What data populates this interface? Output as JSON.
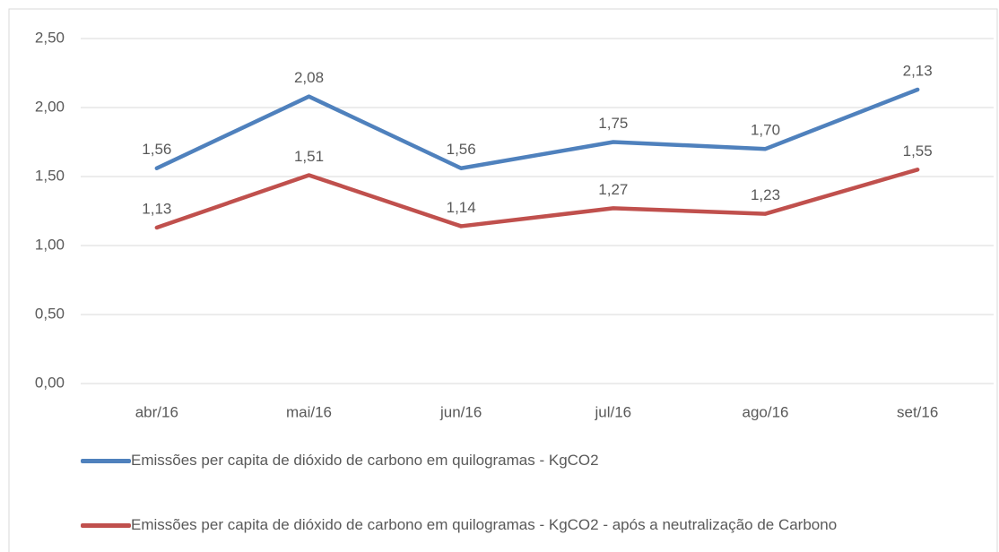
{
  "chart_data": {
    "type": "line",
    "categories": [
      "abr/16",
      "mai/16",
      "jun/16",
      "jul/16",
      "ago/16",
      "set/16"
    ],
    "series": [
      {
        "name": "Emissões per capita de dióxido de carbono em quilogramas - KgCO2",
        "color": "#4f81bd",
        "values": [
          1.56,
          2.08,
          1.56,
          1.75,
          1.7,
          2.13
        ],
        "value_labels": [
          "1,56",
          "2,08",
          "1,56",
          "1,75",
          "1,70",
          "2,13"
        ]
      },
      {
        "name": "Emissões per capita de dióxido de carbono em quilogramas - KgCO2 - após a neutralização de Carbono",
        "color": "#c0504d",
        "values": [
          1.13,
          1.51,
          1.14,
          1.27,
          1.23,
          1.55
        ],
        "value_labels": [
          "1,13",
          "1,51",
          "1,14",
          "1,27",
          "1,23",
          "1,55"
        ]
      }
    ],
    "ylim": [
      0,
      2.5
    ],
    "yticks": [
      {
        "value": 0,
        "label": "0,00"
      },
      {
        "value": 0.5,
        "label": "0,50"
      },
      {
        "value": 1,
        "label": "1,00"
      },
      {
        "value": 1.5,
        "label": "1,50"
      },
      {
        "value": 2,
        "label": "2,00"
      },
      {
        "value": 2.5,
        "label": "2,50"
      }
    ],
    "grid": true,
    "legend": "bottom"
  }
}
